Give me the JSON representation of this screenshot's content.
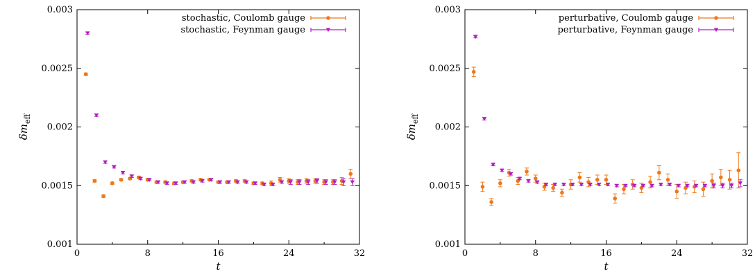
{
  "chart_data": [
    {
      "type": "scatter",
      "xlabel": "t",
      "ylabel": "δm_eff",
      "xlim": [
        0,
        32
      ],
      "ylim": [
        0.001,
        0.003
      ],
      "xticks": [
        "0",
        "8",
        "16",
        "24",
        "32"
      ],
      "yticks": [
        "0.001",
        "0.0015",
        "0.002",
        "0.0025",
        "0.003"
      ],
      "legend_position": "top-right",
      "grid": false,
      "series": [
        {
          "name": "stochastic, Coulomb gauge",
          "color": "#f07818",
          "marker": "circle",
          "x": [
            1,
            2,
            3,
            4,
            5,
            6,
            7,
            8,
            9,
            10,
            11,
            12,
            13,
            14,
            15,
            16,
            17,
            18,
            19,
            20,
            21,
            22,
            23,
            24,
            25,
            26,
            27,
            28,
            29,
            30,
            31
          ],
          "y": [
            0.00245,
            0.00154,
            0.00141,
            0.00152,
            0.00155,
            0.00156,
            0.00157,
            0.00155,
            0.00153,
            0.00153,
            0.00152,
            0.00153,
            0.00154,
            0.00155,
            0.00155,
            0.00153,
            0.00153,
            0.00154,
            0.00154,
            0.00152,
            0.00152,
            0.00152,
            0.00155,
            0.00154,
            0.00153,
            0.00154,
            0.00154,
            0.00153,
            0.00153,
            0.00154,
            0.0016
          ],
          "err": [
            1e-05,
            1e-05,
            1e-05,
            1e-05,
            1e-05,
            1e-05,
            1e-05,
            1e-05,
            1e-05,
            1e-05,
            1e-05,
            1e-05,
            1e-05,
            1e-05,
            1e-05,
            1e-05,
            1e-05,
            1e-05,
            1e-05,
            1e-05,
            1e-05,
            2e-05,
            2e-05,
            2e-05,
            2e-05,
            2e-05,
            2e-05,
            2e-05,
            2e-05,
            3e-05,
            4e-05
          ]
        },
        {
          "name": "stochastic, Feynman gauge",
          "color": "#b020c0",
          "marker": "triangle-down",
          "x": [
            1,
            2,
            3,
            4,
            5,
            6,
            7,
            8,
            9,
            10,
            11,
            12,
            13,
            14,
            15,
            16,
            17,
            18,
            19,
            20,
            21,
            22,
            23,
            24,
            25,
            26,
            27,
            28,
            29,
            30,
            31
          ],
          "y": [
            0.0028,
            0.0021,
            0.0017,
            0.00166,
            0.00161,
            0.00158,
            0.00156,
            0.00155,
            0.00153,
            0.00152,
            0.00152,
            0.00153,
            0.00153,
            0.00154,
            0.00155,
            0.00153,
            0.00153,
            0.00153,
            0.00153,
            0.00152,
            0.00151,
            0.00151,
            0.00153,
            0.00153,
            0.00153,
            0.00153,
            0.00154,
            0.00153,
            0.00153,
            0.00153,
            0.00153
          ],
          "err": [
            1e-05,
            1e-05,
            1e-05,
            1e-05,
            1e-05,
            1e-05,
            1e-05,
            1e-05,
            1e-05,
            1e-05,
            1e-05,
            1e-05,
            1e-05,
            1e-05,
            1e-05,
            1e-05,
            1e-05,
            1e-05,
            1e-05,
            1e-05,
            1e-05,
            1e-05,
            1e-05,
            2e-05,
            2e-05,
            2e-05,
            2e-05,
            2e-05,
            2e-05,
            3e-05,
            3e-05
          ]
        }
      ]
    },
    {
      "type": "scatter",
      "xlabel": "t",
      "ylabel": "δm_eff",
      "xlim": [
        0,
        32
      ],
      "ylim": [
        0.001,
        0.003
      ],
      "xticks": [
        "0",
        "8",
        "16",
        "24",
        "32"
      ],
      "yticks": [
        "0.001",
        "0.0015",
        "0.002",
        "0.0025",
        "0.003"
      ],
      "legend_position": "top-right",
      "grid": false,
      "series": [
        {
          "name": "perturbative, Coulomb gauge",
          "color": "#f07818",
          "marker": "circle",
          "x": [
            1,
            2,
            3,
            4,
            5,
            6,
            7,
            8,
            9,
            10,
            11,
            12,
            13,
            14,
            15,
            16,
            17,
            18,
            19,
            20,
            21,
            22,
            23,
            24,
            25,
            26,
            27,
            28,
            29,
            30,
            31
          ],
          "y": [
            0.00247,
            0.00149,
            0.00136,
            0.00152,
            0.00161,
            0.00154,
            0.00162,
            0.00156,
            0.00149,
            0.00148,
            0.00144,
            0.00151,
            0.00157,
            0.00153,
            0.00155,
            0.00155,
            0.00139,
            0.00147,
            0.00151,
            0.00148,
            0.00153,
            0.00161,
            0.00155,
            0.00145,
            0.00148,
            0.00149,
            0.00147,
            0.00154,
            0.00157,
            0.00155,
            0.00163
          ],
          "err": [
            4e-05,
            4e-05,
            3e-05,
            3e-05,
            3e-05,
            3e-05,
            3e-05,
            3e-05,
            3e-05,
            3e-05,
            3e-05,
            4e-05,
            4e-05,
            4e-05,
            4e-05,
            4e-05,
            4e-05,
            4e-05,
            4e-05,
            4e-05,
            5e-05,
            6e-05,
            5e-05,
            6e-05,
            5e-05,
            5e-05,
            6e-05,
            6e-05,
            7e-05,
            8e-05,
            0.00015
          ]
        },
        {
          "name": "perturbative, Feynman gauge",
          "color": "#b020c0",
          "marker": "triangle-down",
          "x": [
            1,
            2,
            3,
            4,
            5,
            6,
            7,
            8,
            9,
            10,
            11,
            12,
            13,
            14,
            15,
            16,
            17,
            18,
            19,
            20,
            21,
            22,
            23,
            24,
            25,
            26,
            27,
            28,
            29,
            30,
            31
          ],
          "y": [
            0.00277,
            0.00207,
            0.00168,
            0.00163,
            0.0016,
            0.00156,
            0.00154,
            0.00153,
            0.00151,
            0.00151,
            0.00151,
            0.00151,
            0.00151,
            0.00151,
            0.00151,
            0.00151,
            0.0015,
            0.0015,
            0.0015,
            0.0015,
            0.0015,
            0.00151,
            0.00151,
            0.0015,
            0.0015,
            0.0015,
            0.0015,
            0.0015,
            0.0015,
            0.0015,
            0.00152
          ],
          "err": [
            1e-05,
            1e-05,
            1e-05,
            1e-05,
            1e-05,
            1e-05,
            1e-05,
            1e-05,
            1e-05,
            1e-05,
            1e-05,
            1e-05,
            1e-05,
            1e-05,
            1e-05,
            1e-05,
            1e-05,
            1e-05,
            1e-05,
            1e-05,
            1e-05,
            1e-05,
            1e-05,
            1e-05,
            1e-05,
            1e-05,
            1e-05,
            2e-05,
            2e-05,
            2e-05,
            3e-05
          ]
        }
      ]
    }
  ]
}
